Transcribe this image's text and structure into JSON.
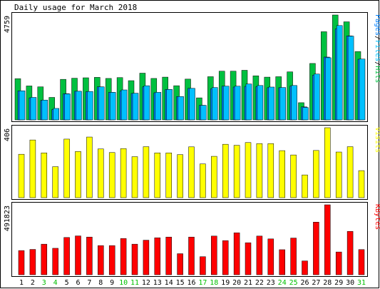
{
  "title": "Daily usage for March 2018",
  "colors": {
    "background": "#ffffff",
    "panel": "#ffffff",
    "border": "#000000",
    "hits": "#00c040",
    "files": "#00c0ff",
    "pages": "#0080ff",
    "visits": "#ffff00",
    "kbytes": "#ff0000",
    "weekend_label": "#00c000",
    "weekday_label": "#000000"
  },
  "chart_data": [
    {
      "type": "bar",
      "panel": "pages-files-hits",
      "ylabel_max": "4759",
      "ylim": [
        0,
        4759
      ],
      "legend": [
        {
          "text": "Pages",
          "color": "#0080ff"
        },
        {
          "text": "/",
          "color": "#000000"
        },
        {
          "text": "Files",
          "color": "#00c0ff"
        },
        {
          "text": "/",
          "color": "#000000"
        },
        {
          "text": "Hits",
          "color": "#00c040"
        }
      ],
      "categories": [
        "1",
        "2",
        "3",
        "4",
        "5",
        "6",
        "7",
        "8",
        "9",
        "10",
        "11",
        "12",
        "13",
        "14",
        "15",
        "16",
        "17",
        "18",
        "19",
        "20",
        "21",
        "22",
        "23",
        "24",
        "25",
        "26",
        "27",
        "28",
        "29",
        "30",
        "31"
      ],
      "weekend": [
        3,
        4,
        10,
        11,
        17,
        18,
        24,
        25,
        31
      ],
      "series": [
        {
          "name": "Hits",
          "values": [
            1870,
            1540,
            1500,
            1020,
            1840,
            1890,
            1910,
            1930,
            1880,
            1920,
            1780,
            2120,
            1880,
            1940,
            1550,
            1850,
            1000,
            1960,
            2210,
            2210,
            2250,
            2000,
            1940,
            1960,
            2180,
            780,
            2560,
            4000,
            4759,
            4450,
            3100
          ]
        },
        {
          "name": "Files",
          "values": [
            1320,
            1020,
            900,
            520,
            1180,
            1300,
            1290,
            1500,
            1250,
            1360,
            1210,
            1550,
            1250,
            1380,
            1060,
            1430,
            660,
            1470,
            1530,
            1530,
            1630,
            1560,
            1490,
            1470,
            1560,
            560,
            2080,
            2820,
            4280,
            3800,
            2760
          ]
        },
        {
          "name": "Pages",
          "values": [
            1320,
            1000,
            880,
            470,
            1190,
            1300,
            1280,
            1500,
            1250,
            1310,
            1200,
            1500,
            1230,
            1380,
            1060,
            1430,
            660,
            1410,
            1530,
            1490,
            1520,
            1510,
            1460,
            1460,
            1530,
            590,
            2030,
            2850,
            4130,
            3810,
            2750
          ]
        }
      ]
    },
    {
      "type": "bar",
      "panel": "visits",
      "ylabel_max": "406",
      "ylim": [
        0,
        406
      ],
      "legend": [
        {
          "text": "Visits",
          "color": "#ffff00"
        }
      ],
      "categories": [
        "1",
        "2",
        "3",
        "4",
        "5",
        "6",
        "7",
        "8",
        "9",
        "10",
        "11",
        "12",
        "13",
        "14",
        "15",
        "16",
        "17",
        "18",
        "19",
        "20",
        "21",
        "22",
        "23",
        "24",
        "25",
        "26",
        "27",
        "28",
        "29",
        "30",
        "31"
      ],
      "series": [
        {
          "name": "Visits",
          "values": [
            252,
            335,
            260,
            180,
            340,
            268,
            352,
            283,
            262,
            285,
            238,
            296,
            260,
            260,
            250,
            295,
            196,
            240,
            310,
            304,
            320,
            314,
            314,
            273,
            248,
            132,
            274,
            406,
            265,
            296,
            157
          ]
        }
      ]
    },
    {
      "type": "bar",
      "panel": "kbytes",
      "ylabel_max": "491823",
      "ylim": [
        0,
        491823
      ],
      "legend": [
        {
          "text": "KBytes",
          "color": "#ff0000"
        }
      ],
      "categories": [
        "1",
        "2",
        "3",
        "4",
        "5",
        "6",
        "7",
        "8",
        "9",
        "10",
        "11",
        "12",
        "13",
        "14",
        "15",
        "16",
        "17",
        "18",
        "19",
        "20",
        "21",
        "22",
        "23",
        "24",
        "25",
        "26",
        "27",
        "28",
        "29",
        "30",
        "31"
      ],
      "series": [
        {
          "name": "KBytes",
          "values": [
            170000,
            178000,
            215000,
            186000,
            262000,
            273000,
            265000,
            205000,
            205000,
            255000,
            215000,
            243000,
            260000,
            265000,
            148000,
            265000,
            127000,
            272000,
            240000,
            295000,
            225000,
            272000,
            252000,
            176000,
            258000,
            97000,
            370000,
            491823,
            160000,
            305000,
            177000
          ]
        }
      ]
    }
  ]
}
